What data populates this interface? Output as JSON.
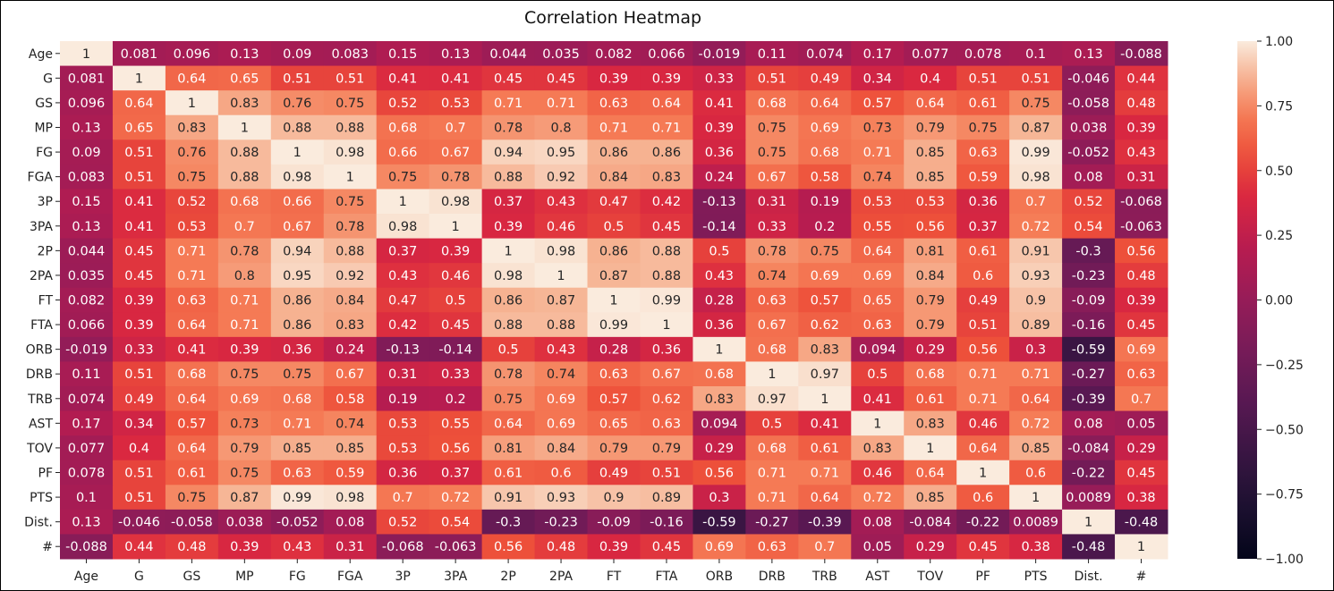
{
  "chart_data": {
    "type": "heatmap",
    "title": "Correlation Heatmap",
    "xlabel": "",
    "ylabel": "",
    "labels": [
      "Age",
      "G",
      "GS",
      "MP",
      "FG",
      "FGA",
      "3P",
      "3PA",
      "2P",
      "2PA",
      "FT",
      "FTA",
      "ORB",
      "DRB",
      "TRB",
      "AST",
      "TOV",
      "PF",
      "PTS",
      "Dist.",
      "#"
    ],
    "value_labels": [
      [
        "1",
        "0.081",
        "0.096",
        "0.13",
        "0.09",
        "0.083",
        "0.15",
        "0.13",
        "0.044",
        "0.035",
        "0.082",
        "0.066",
        "-0.019",
        "0.11",
        "0.074",
        "0.17",
        "0.077",
        "0.078",
        "0.1",
        "0.13",
        "-0.088"
      ],
      [
        "0.081",
        "1",
        "0.64",
        "0.65",
        "0.51",
        "0.51",
        "0.41",
        "0.41",
        "0.45",
        "0.45",
        "0.39",
        "0.39",
        "0.33",
        "0.51",
        "0.49",
        "0.34",
        "0.4",
        "0.51",
        "0.51",
        "-0.046",
        "0.44"
      ],
      [
        "0.096",
        "0.64",
        "1",
        "0.83",
        "0.76",
        "0.75",
        "0.52",
        "0.53",
        "0.71",
        "0.71",
        "0.63",
        "0.64",
        "0.41",
        "0.68",
        "0.64",
        "0.57",
        "0.64",
        "0.61",
        "0.75",
        "-0.058",
        "0.48"
      ],
      [
        "0.13",
        "0.65",
        "0.83",
        "1",
        "0.88",
        "0.88",
        "0.68",
        "0.7",
        "0.78",
        "0.8",
        "0.71",
        "0.71",
        "0.39",
        "0.75",
        "0.69",
        "0.73",
        "0.79",
        "0.75",
        "0.87",
        "0.038",
        "0.39"
      ],
      [
        "0.09",
        "0.51",
        "0.76",
        "0.88",
        "1",
        "0.98",
        "0.66",
        "0.67",
        "0.94",
        "0.95",
        "0.86",
        "0.86",
        "0.36",
        "0.75",
        "0.68",
        "0.71",
        "0.85",
        "0.63",
        "0.99",
        "-0.052",
        "0.43"
      ],
      [
        "0.083",
        "0.51",
        "0.75",
        "0.88",
        "0.98",
        "1",
        "0.75",
        "0.78",
        "0.88",
        "0.92",
        "0.84",
        "0.83",
        "0.24",
        "0.67",
        "0.58",
        "0.74",
        "0.85",
        "0.59",
        "0.98",
        "0.08",
        "0.31"
      ],
      [
        "0.15",
        "0.41",
        "0.52",
        "0.68",
        "0.66",
        "0.75",
        "1",
        "0.98",
        "0.37",
        "0.43",
        "0.47",
        "0.42",
        "-0.13",
        "0.31",
        "0.19",
        "0.53",
        "0.53",
        "0.36",
        "0.7",
        "0.52",
        "-0.068"
      ],
      [
        "0.13",
        "0.41",
        "0.53",
        "0.7",
        "0.67",
        "0.78",
        "0.98",
        "1",
        "0.39",
        "0.46",
        "0.5",
        "0.45",
        "-0.14",
        "0.33",
        "0.2",
        "0.55",
        "0.56",
        "0.37",
        "0.72",
        "0.54",
        "-0.063"
      ],
      [
        "0.044",
        "0.45",
        "0.71",
        "0.78",
        "0.94",
        "0.88",
        "0.37",
        "0.39",
        "1",
        "0.98",
        "0.86",
        "0.88",
        "0.5",
        "0.78",
        "0.75",
        "0.64",
        "0.81",
        "0.61",
        "0.91",
        "-0.3",
        "0.56"
      ],
      [
        "0.035",
        "0.45",
        "0.71",
        "0.8",
        "0.95",
        "0.92",
        "0.43",
        "0.46",
        "0.98",
        "1",
        "0.87",
        "0.88",
        "0.43",
        "0.74",
        "0.69",
        "0.69",
        "0.84",
        "0.6",
        "0.93",
        "-0.23",
        "0.48"
      ],
      [
        "0.082",
        "0.39",
        "0.63",
        "0.71",
        "0.86",
        "0.84",
        "0.47",
        "0.5",
        "0.86",
        "0.87",
        "1",
        "0.99",
        "0.28",
        "0.63",
        "0.57",
        "0.65",
        "0.79",
        "0.49",
        "0.9",
        "-0.09",
        "0.39"
      ],
      [
        "0.066",
        "0.39",
        "0.64",
        "0.71",
        "0.86",
        "0.83",
        "0.42",
        "0.45",
        "0.88",
        "0.88",
        "0.99",
        "1",
        "0.36",
        "0.67",
        "0.62",
        "0.63",
        "0.79",
        "0.51",
        "0.89",
        "-0.16",
        "0.45"
      ],
      [
        "-0.019",
        "0.33",
        "0.41",
        "0.39",
        "0.36",
        "0.24",
        "-0.13",
        "-0.14",
        "0.5",
        "0.43",
        "0.28",
        "0.36",
        "1",
        "0.68",
        "0.83",
        "0.094",
        "0.29",
        "0.56",
        "0.3",
        "-0.59",
        "0.69"
      ],
      [
        "0.11",
        "0.51",
        "0.68",
        "0.75",
        "0.75",
        "0.67",
        "0.31",
        "0.33",
        "0.78",
        "0.74",
        "0.63",
        "0.67",
        "0.68",
        "1",
        "0.97",
        "0.5",
        "0.68",
        "0.71",
        "0.71",
        "-0.27",
        "0.63"
      ],
      [
        "0.074",
        "0.49",
        "0.64",
        "0.69",
        "0.68",
        "0.58",
        "0.19",
        "0.2",
        "0.75",
        "0.69",
        "0.57",
        "0.62",
        "0.83",
        "0.97",
        "1",
        "0.41",
        "0.61",
        "0.71",
        "0.64",
        "-0.39",
        "0.7"
      ],
      [
        "0.17",
        "0.34",
        "0.57",
        "0.73",
        "0.71",
        "0.74",
        "0.53",
        "0.55",
        "0.64",
        "0.69",
        "0.65",
        "0.63",
        "0.094",
        "0.5",
        "0.41",
        "1",
        "0.83",
        "0.46",
        "0.72",
        "0.08",
        "0.05"
      ],
      [
        "0.077",
        "0.4",
        "0.64",
        "0.79",
        "0.85",
        "0.85",
        "0.53",
        "0.56",
        "0.81",
        "0.84",
        "0.79",
        "0.79",
        "0.29",
        "0.68",
        "0.61",
        "0.83",
        "1",
        "0.64",
        "0.85",
        "-0.084",
        "0.29"
      ],
      [
        "0.078",
        "0.51",
        "0.61",
        "0.75",
        "0.63",
        "0.59",
        "0.36",
        "0.37",
        "0.61",
        "0.6",
        "0.49",
        "0.51",
        "0.56",
        "0.71",
        "0.71",
        "0.46",
        "0.64",
        "1",
        "0.6",
        "-0.22",
        "0.45"
      ],
      [
        "0.1",
        "0.51",
        "0.75",
        "0.87",
        "0.99",
        "0.98",
        "0.7",
        "0.72",
        "0.91",
        "0.93",
        "0.9",
        "0.89",
        "0.3",
        "0.71",
        "0.64",
        "0.72",
        "0.85",
        "0.6",
        "1",
        "0.0089",
        "0.38"
      ],
      [
        "0.13",
        "-0.046",
        "-0.058",
        "0.038",
        "-0.052",
        "0.08",
        "0.52",
        "0.54",
        "-0.3",
        "-0.23",
        "-0.09",
        "-0.16",
        "-0.59",
        "-0.27",
        "-0.39",
        "0.08",
        "-0.084",
        "-0.22",
        "0.0089",
        "1",
        "-0.48"
      ],
      [
        "-0.088",
        "0.44",
        "0.48",
        "0.39",
        "0.43",
        "0.31",
        "-0.068",
        "-0.063",
        "0.56",
        "0.48",
        "0.39",
        "0.45",
        "0.69",
        "0.63",
        "0.7",
        "0.05",
        "0.29",
        "0.45",
        "0.38",
        "-0.48",
        "1"
      ]
    ],
    "vmin": -1,
    "vmax": 1,
    "colormap": "rocket",
    "colorbar_ticks": [
      "1.00",
      "0.75",
      "0.50",
      "0.25",
      "0.00",
      "−0.25",
      "−0.50",
      "−0.75",
      "−1.00"
    ],
    "colorbar_tick_values": [
      1,
      0.75,
      0.5,
      0.25,
      0,
      -0.25,
      -0.5,
      -0.75,
      -1
    ],
    "annotated": true,
    "grid": false,
    "legend": "colorbar-right"
  }
}
